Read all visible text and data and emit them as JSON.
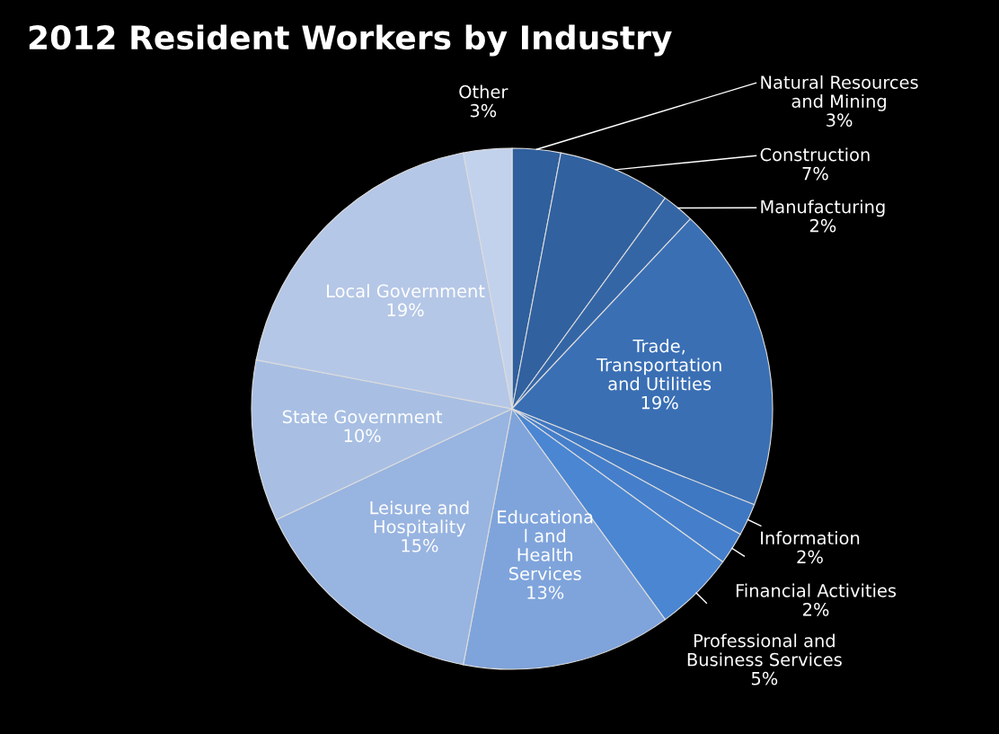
{
  "chart_data": {
    "type": "pie",
    "title": "2012 Resident Workers by Industry",
    "categories": [
      "Natural Resources\nand Mining",
      "Construction",
      "Manufacturing",
      "Trade,\nTransportation\nand Utilities",
      "Information",
      "Financial Activities",
      "Professional and\nBusiness Services",
      "Educationa\nl and\nHealth\nServices",
      "Leisure and\nHospitality",
      "State Government",
      "Local Government",
      "Other"
    ],
    "values": [
      3,
      7,
      2,
      19,
      2,
      2,
      5,
      13,
      15,
      10,
      19,
      3
    ],
    "colors": [
      "#2f5f9c",
      "#31619f",
      "#3466a6",
      "#3a6fb4",
      "#3f78c2",
      "#457fcb",
      "#4a86d2",
      "#7fa4db",
      "#98b4e0",
      "#a8bfe3",
      "#b5c7e6",
      "#c3d2ec"
    ],
    "value_labels": [
      "3%",
      "7%",
      "2%",
      "19%",
      "2%",
      "2%",
      "5%",
      "13%",
      "15%",
      "10%",
      "19%",
      "3%"
    ]
  }
}
